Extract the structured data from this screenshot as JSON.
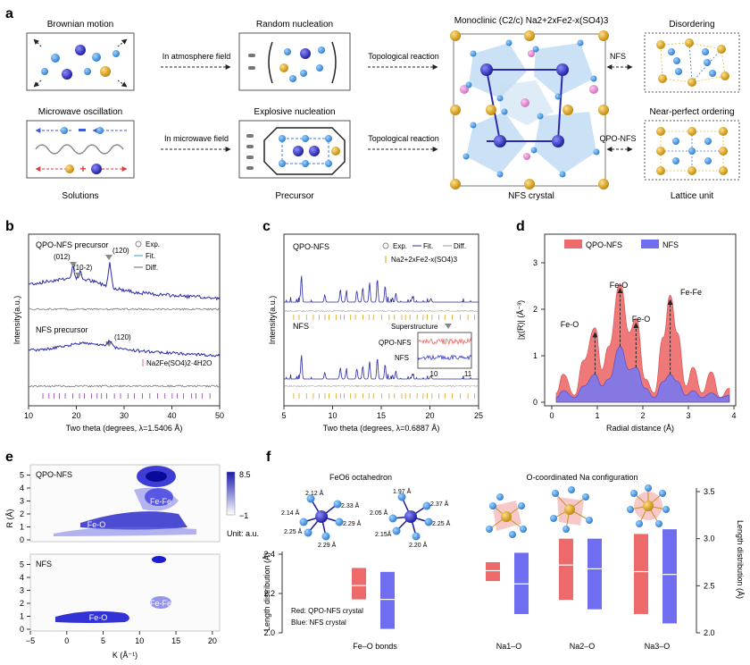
{
  "panels": {
    "a": {
      "label": "a",
      "steps": [
        {
          "title": "Brownian motion"
        },
        {
          "title": "Random nucleation"
        },
        {
          "title": "Microwave oscillation"
        },
        {
          "title": "Explosive nucleation"
        },
        {
          "title": "Disordering"
        },
        {
          "title": "Near-perfect ordering"
        }
      ],
      "arrows": [
        "In atmosphere field",
        "In microwave field",
        "Topological reaction",
        "Topological reaction",
        "NFS",
        "QPO-NFS"
      ],
      "crystal_title": "Monoclinic (C2/c) Na2+2xFe2-x(SO4)3",
      "footers": [
        "Solutions",
        "Precursor",
        "NFS crystal",
        "Lattice unit"
      ]
    },
    "b": {
      "label": "b",
      "top_title": "QPO-NFS precursor",
      "bottom_title": "NFS precursor",
      "legend": [
        "Exp.",
        "Fit.",
        "Diff."
      ],
      "peaks": [
        "(012)",
        "(10-2)",
        "(120)",
        "(120)"
      ],
      "ref_label": "Na2Fe(SO4)2·4H2O",
      "xlabel": "Two theta (degrees, λ=1.5406 Å)",
      "ylabel": "Intensity(a.u.)",
      "xticks": [
        "10",
        "20",
        "30",
        "40",
        "50"
      ]
    },
    "c": {
      "label": "c",
      "top_title": "QPO-NFS",
      "bottom_title": "NFS",
      "legend": [
        "Exp.",
        "Fit.",
        "Diff."
      ],
      "ref_label": "Na2+2xFe2-x(SO4)3",
      "inset_title": "Superstructure",
      "inset_labels": [
        "QPO-NFS",
        "NFS"
      ],
      "inset_ticks": [
        "10",
        "11"
      ],
      "xlabel": "Two theta (degrees, λ=0.6887 Å)",
      "ylabel": "Intensity(a.u.)",
      "xticks": [
        "5",
        "10",
        "15",
        "20",
        "25"
      ]
    },
    "d": {
      "label": "d",
      "legend": [
        "QPO-NFS",
        "NFS"
      ],
      "peak_labels": [
        "Fe-O",
        "Fe-O",
        "Fe-O",
        "Fe-Fe"
      ],
      "xlabel": "Radial distance (Å)",
      "ylabel": "|χ(R)| (Å⁻³)",
      "xticks": [
        "0",
        "1",
        "2",
        "3",
        "4"
      ],
      "yticks": [
        "0",
        "1",
        "2",
        "3"
      ]
    },
    "e": {
      "label": "e",
      "top_title": "QPO-NFS",
      "bottom_title": "NFS",
      "feature_labels": [
        "Fe-Fe",
        "Fe-O",
        "Fe-Fe",
        "Fe-O"
      ],
      "colorbar_max": "8.5",
      "colorbar_min": "−1",
      "unit": "Unit: a.u.",
      "xlabel": "K (Å⁻¹)",
      "ylabel": "R (Å)",
      "xticks": [
        "−5",
        "0",
        "5",
        "10",
        "15",
        "20"
      ],
      "yticks": [
        "0",
        "1",
        "2",
        "3",
        "4",
        "5"
      ]
    },
    "f": {
      "label": "f",
      "left_title": "FeO6 octahedron",
      "right_title": "O-coordinated Na configuration",
      "oct1_bonds": [
        "2.12 Å",
        "2.33 Å",
        "2.14 Å",
        "2.29 Å",
        "2.25 Å",
        "2.29 Å"
      ],
      "oct2_bonds": [
        "1.97 Å",
        "2.37 Å",
        "2.05 Å",
        "2.25 Å",
        "2.15Å",
        "2.20 Å"
      ],
      "legend": [
        "Red: QPO-NFS crystal",
        "Blue: NFS crystal"
      ],
      "groups": [
        "Fe–O bonds",
        "Na1–O",
        "Na2–O",
        "Na3–O"
      ],
      "ylabel_left": "Length distribution (Å)",
      "ylabel_right": "Length distribution (Å)",
      "yticks_left": [
        "2.0",
        "2.2",
        "2.4"
      ],
      "yticks_right": [
        "2.0",
        "2.5",
        "3.0",
        "3.5"
      ]
    }
  },
  "colors": {
    "red": "#ee6a6a",
    "blue": "#6f6ef0",
    "navy": "#2b2ba8",
    "sphere_blue": "#3a90e0",
    "sphere_gold": "#d9a11a"
  },
  "chart_data": [
    {
      "type": "line",
      "panel": "b",
      "x_range": [
        10,
        50
      ],
      "series": [
        {
          "name": "QPO-NFS precursor",
          "peaks": [
            19.3,
            20.8,
            27.0
          ]
        },
        {
          "name": "NFS precursor",
          "peaks": [
            27.0
          ]
        }
      ]
    },
    {
      "type": "line",
      "panel": "c",
      "x_range": [
        5,
        25
      ],
      "series": [
        {
          "name": "QPO-NFS"
        },
        {
          "name": "NFS"
        }
      ]
    },
    {
      "type": "area",
      "panel": "d",
      "xlim": [
        0,
        4
      ],
      "ylim": [
        0,
        3.5
      ],
      "series": [
        {
          "name": "QPO-NFS",
          "x": [
            0.1,
            0.25,
            0.5,
            0.7,
            0.95,
            1.1,
            1.25,
            1.5,
            1.7,
            1.85,
            2.05,
            2.25,
            2.45,
            2.6,
            2.75,
            2.95,
            3.1,
            3.3,
            3.5,
            3.7,
            3.9
          ],
          "y": [
            0.2,
            0.6,
            0.15,
            0.9,
            1.6,
            0.7,
            1.2,
            2.55,
            1.5,
            1.8,
            0.5,
            0.2,
            1.4,
            2.3,
            1.5,
            0.35,
            0.75,
            0.2,
            0.65,
            0.1,
            0.3
          ]
        },
        {
          "name": "NFS",
          "x": [
            0.1,
            0.25,
            0.5,
            0.7,
            0.95,
            1.1,
            1.25,
            1.5,
            1.7,
            1.85,
            2.05,
            2.25,
            2.45,
            2.6,
            2.75,
            2.95,
            3.1,
            3.3,
            3.5,
            3.7,
            3.9
          ],
          "y": [
            0.1,
            0.25,
            0.1,
            0.35,
            0.6,
            0.35,
            0.5,
            1.2,
            0.7,
            0.75,
            0.3,
            0.1,
            0.45,
            0.6,
            0.45,
            0.15,
            0.25,
            0.1,
            0.2,
            0.1,
            0.15
          ]
        }
      ]
    },
    {
      "type": "bar",
      "panel": "f",
      "categories": [
        "Fe–O bonds",
        "Na1–O",
        "Na2–O",
        "Na3–O"
      ],
      "series": [
        {
          "name": "QPO-NFS",
          "low": [
            2.17,
            2.55,
            2.35,
            2.2
          ],
          "high": [
            2.33,
            2.75,
            3.0,
            3.05
          ],
          "median": [
            2.24,
            2.66,
            2.72,
            2.65
          ]
        },
        {
          "name": "NFS",
          "low": [
            2.02,
            2.2,
            2.25,
            2.1
          ],
          "high": [
            2.31,
            2.85,
            3.0,
            3.1
          ],
          "median": [
            2.17,
            2.52,
            2.68,
            2.62
          ]
        }
      ]
    }
  ]
}
